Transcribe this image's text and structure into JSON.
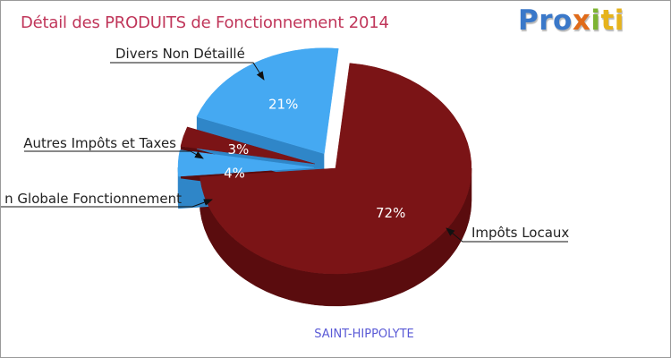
{
  "chart_data": {
    "type": "pie",
    "title": "Détail des PRODUITS de Fonctionnement 2014",
    "subtitle": "SAINT-HIPPOLYTE",
    "slices": [
      {
        "label": "Impôts Locaux",
        "value": 72,
        "pct_label": "72%",
        "color": "#7b1416",
        "side": "#5a0c0e",
        "exploded": false
      },
      {
        "label": "Dotation Globale Fonctionnement",
        "display_label": "n Globale Fonctionnement",
        "value": 4,
        "pct_label": "4%",
        "color": "#45a9f2",
        "side": "#2f86c8",
        "exploded": true
      },
      {
        "label": "Autres Impôts et Taxes",
        "value": 3,
        "pct_label": "3%",
        "color": "#7b1416",
        "side": "#5a0c0e",
        "exploded": true
      },
      {
        "label": "Divers Non Détaillé",
        "value": 21,
        "pct_label": "21%",
        "color": "#45a9f2",
        "side": "#2f86c8",
        "exploded": true
      }
    ]
  },
  "logo": {
    "p1": "Pro",
    "p2": "x",
    "p3": "i",
    "p4": "ti"
  }
}
